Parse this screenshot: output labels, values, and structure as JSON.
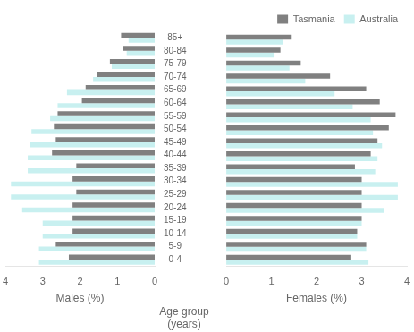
{
  "chart_data": [
    {
      "type": "bar",
      "orientation": "horizontal",
      "xlabel": "Males (%)",
      "ylabel": "Age group\n(years)",
      "categories": [
        "0-4",
        "5-9",
        "10-14",
        "15-19",
        "20-24",
        "25-29",
        "30-34",
        "35-39",
        "40-44",
        "45-49",
        "50-54",
        "55-59",
        "60-64",
        "65-69",
        "70-74",
        "75-79",
        "80-84",
        "85+"
      ],
      "series": [
        {
          "name": "Tasmania",
          "color": "#808080",
          "values": [
            2.3,
            2.65,
            2.2,
            2.2,
            2.2,
            2.1,
            2.2,
            2.1,
            2.75,
            2.65,
            2.7,
            2.6,
            1.95,
            1.85,
            1.55,
            1.2,
            0.85,
            0.9
          ]
        },
        {
          "name": "Australia",
          "color": "#c8f0f0",
          "values": [
            3.1,
            3.1,
            3.0,
            3.0,
            3.55,
            3.85,
            3.85,
            3.4,
            3.4,
            3.35,
            3.3,
            2.8,
            2.6,
            2.35,
            1.65,
            1.15,
            0.75,
            0.7
          ]
        }
      ],
      "xlim": [
        4,
        0
      ],
      "xticks": [
        0,
        1,
        2,
        3,
        4
      ],
      "grid": false
    },
    {
      "type": "bar",
      "orientation": "horizontal",
      "xlabel": "Females (%)",
      "categories": [
        "0-4",
        "5-9",
        "10-14",
        "15-19",
        "20-24",
        "25-29",
        "30-34",
        "35-39",
        "40-44",
        "45-49",
        "50-54",
        "55-59",
        "60-64",
        "65-69",
        "70-74",
        "75-79",
        "80-84",
        "85+"
      ],
      "series": [
        {
          "name": "Tasmania",
          "color": "#808080",
          "values": [
            2.75,
            3.1,
            2.9,
            3.0,
            3.0,
            3.0,
            3.0,
            2.85,
            3.2,
            3.35,
            3.6,
            3.75,
            3.4,
            3.1,
            2.3,
            1.65,
            1.2,
            1.45
          ]
        },
        {
          "name": "Australia",
          "color": "#c8f0f0",
          "values": [
            3.15,
            3.1,
            2.9,
            3.0,
            3.5,
            3.8,
            3.8,
            3.3,
            3.35,
            3.45,
            3.25,
            3.2,
            2.8,
            2.4,
            1.75,
            1.4,
            1.05,
            1.25
          ]
        }
      ],
      "xlim": [
        0,
        4
      ],
      "xticks": [
        0,
        1,
        2,
        3,
        4
      ],
      "grid": false,
      "tick_labels": "x",
      "legend": "upper right"
    }
  ]
}
